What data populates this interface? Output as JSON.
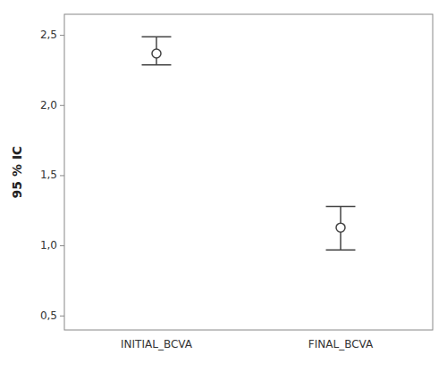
{
  "chart_data": {
    "type": "errorbar",
    "ylabel": "95 % IC",
    "categories": [
      "INITIAL_BCVA",
      "FINAL_BCVA"
    ],
    "values": [
      2.37,
      1.13
    ],
    "ci_upper": [
      2.49,
      1.28
    ],
    "ci_lower": [
      2.29,
      0.97
    ],
    "color": "#444444",
    "marker": "circle",
    "ylim": [
      0.4,
      2.65
    ],
    "yticks": [
      {
        "value": 0.5,
        "label": "0,5"
      },
      {
        "value": 1.0,
        "label": "1,0"
      },
      {
        "value": 1.5,
        "label": "1,5"
      },
      {
        "value": 2.0,
        "label": "2,0"
      },
      {
        "value": 2.5,
        "label": "2,5"
      }
    ],
    "grid": false
  }
}
